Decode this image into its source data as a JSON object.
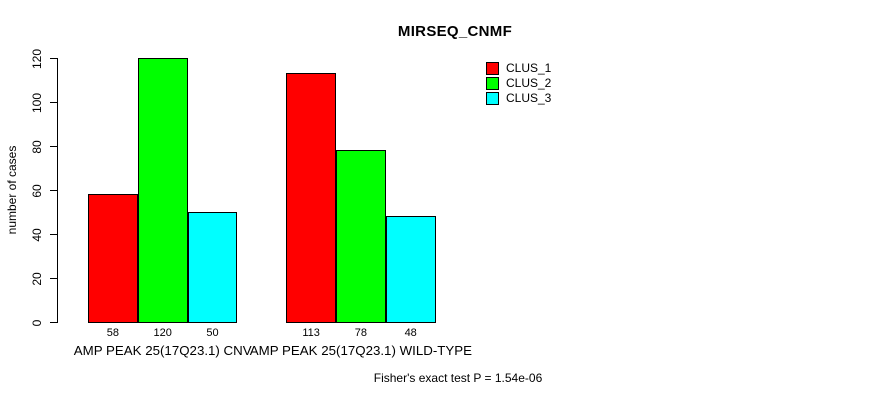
{
  "chart_data": {
    "type": "bar",
    "title": "MIRSEQ_CNMF",
    "xlabel": "",
    "ylabel": "number of cases",
    "ylim": [
      0,
      120
    ],
    "yticks": [
      0,
      20,
      40,
      60,
      80,
      100,
      120
    ],
    "grid": false,
    "legend_position": "top-right",
    "categories": [
      "AMP PEAK 25(17Q23.1) CNV",
      "AMP PEAK 25(17Q23.1) WILD-TYPE"
    ],
    "series": [
      {
        "name": "CLUS_1",
        "color": "#ff0000",
        "values": [
          58,
          113
        ]
      },
      {
        "name": "CLUS_2",
        "color": "#00ff00",
        "values": [
          120,
          78
        ]
      },
      {
        "name": "CLUS_3",
        "color": "#00ffff",
        "values": [
          50,
          48
        ]
      }
    ],
    "bar_value_labels": [
      [
        "58",
        "120",
        "50"
      ],
      [
        "113",
        "78",
        "48"
      ]
    ],
    "axis_color": "#000000",
    "bar_border_color": "#000000"
  },
  "caption": "Fisher's exact test P = 1.54e-06"
}
